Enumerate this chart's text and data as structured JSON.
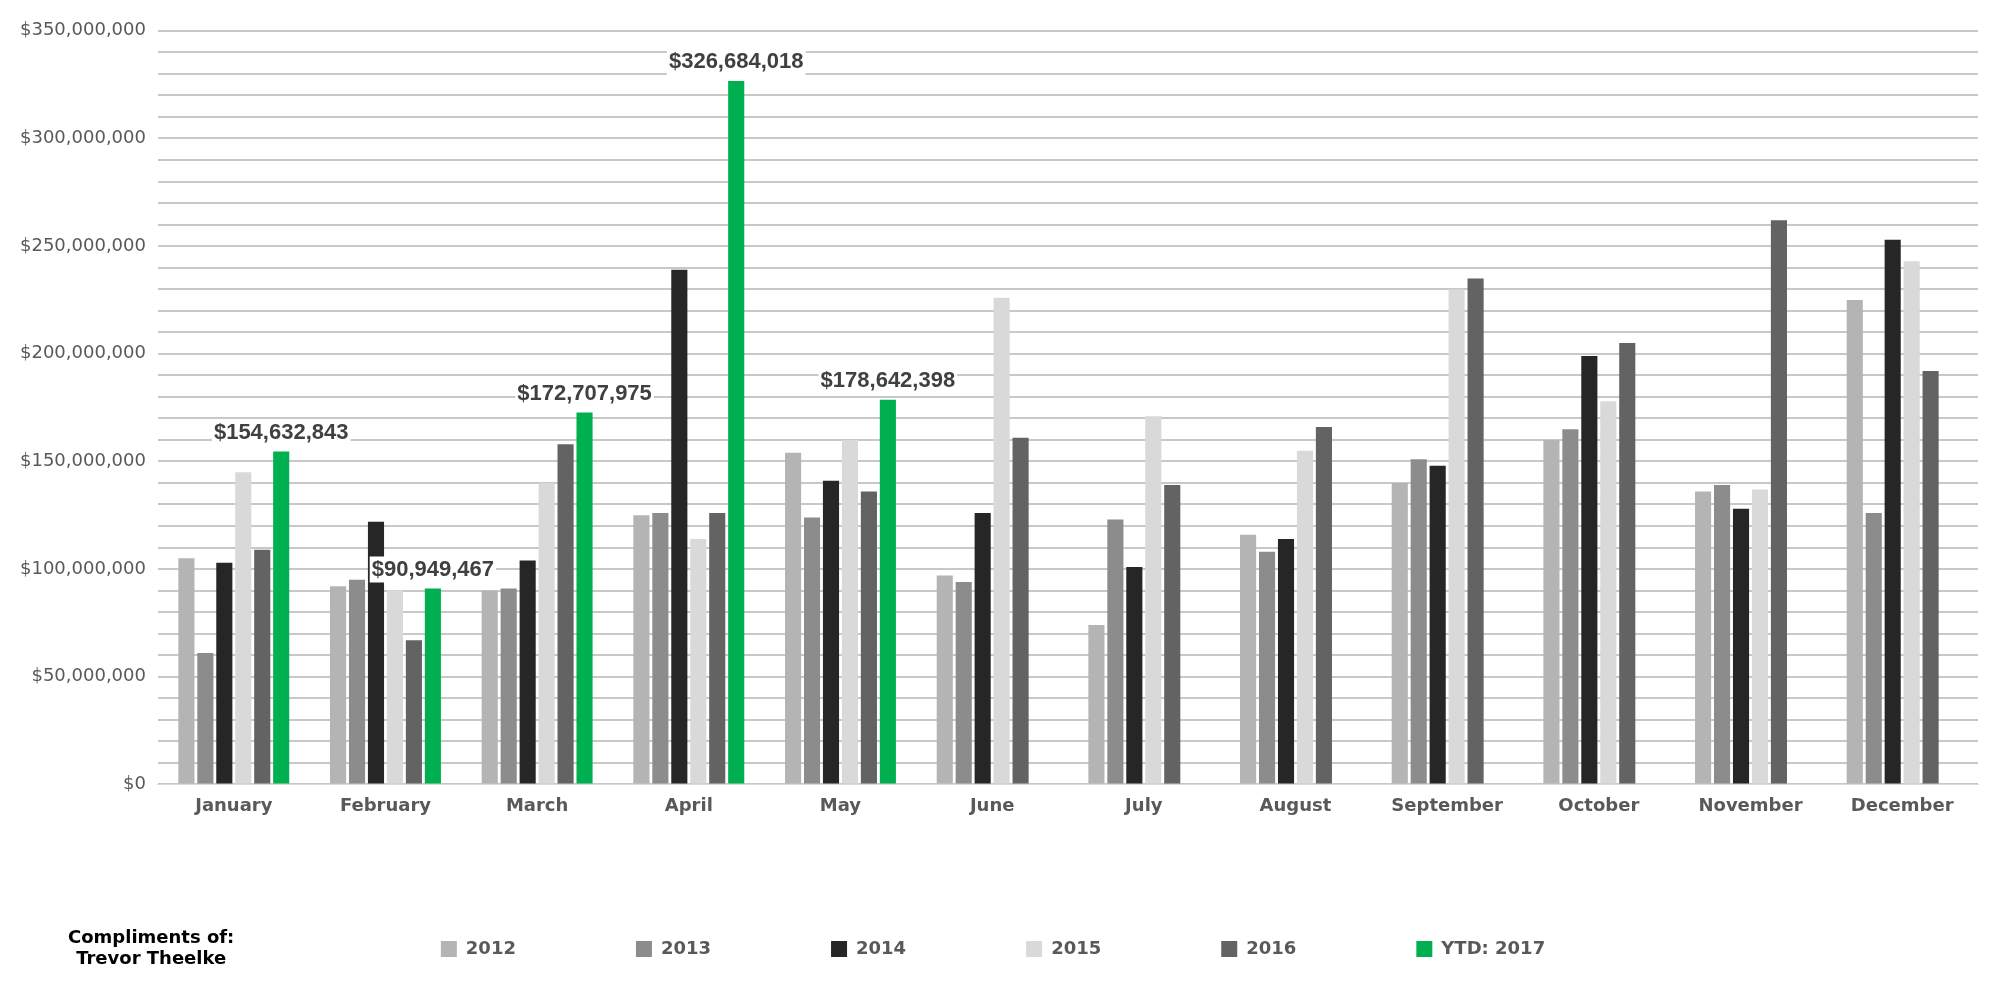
{
  "chart_data": {
    "type": "bar",
    "categories": [
      "January",
      "February",
      "March",
      "April",
      "May",
      "June",
      "July",
      "August",
      "September",
      "October",
      "November",
      "December"
    ],
    "series": [
      {
        "name": "2012",
        "color": "#b4b4b4",
        "values": [
          105000000,
          92000000,
          90000000,
          125000000,
          154000000,
          97000000,
          74000000,
          116000000,
          140000000,
          160000000,
          136000000,
          225000000
        ]
      },
      {
        "name": "2013",
        "color": "#8c8c8c",
        "values": [
          61000000,
          95000000,
          91000000,
          126000000,
          124000000,
          94000000,
          123000000,
          108000000,
          151000000,
          165000000,
          139000000,
          126000000
        ]
      },
      {
        "name": "2014",
        "color": "#262626",
        "values": [
          103000000,
          122000000,
          104000000,
          239000000,
          141000000,
          126000000,
          101000000,
          114000000,
          148000000,
          199000000,
          128000000,
          253000000
        ]
      },
      {
        "name": "2015",
        "color": "#d9d9d9",
        "values": [
          145000000,
          90000000,
          140000000,
          114000000,
          160000000,
          226000000,
          171000000,
          155000000,
          230000000,
          178000000,
          137000000,
          243000000
        ]
      },
      {
        "name": "2016",
        "color": "#636363",
        "values": [
          109000000,
          67000000,
          158000000,
          126000000,
          136000000,
          161000000,
          139000000,
          166000000,
          235000000,
          205000000,
          262000000,
          192000000
        ]
      },
      {
        "name": "YTD: 2017",
        "color": "#00b050",
        "values": [
          154632843,
          90949467,
          172707975,
          326684018,
          178642398,
          null,
          null,
          null,
          null,
          null,
          null,
          null
        ],
        "value_labels": [
          "$154,632,843",
          "$90,949,467",
          "$172,707,975",
          "$326,684,018",
          "$178,642,398",
          null,
          null,
          null,
          null,
          null,
          null,
          null
        ]
      }
    ],
    "ylim": [
      0,
      350000000
    ],
    "yticks": [
      {
        "value": 0,
        "label": "$0"
      },
      {
        "value": 10000000,
        "label": null
      },
      {
        "value": 20000000,
        "label": null
      },
      {
        "value": 30000000,
        "label": null
      },
      {
        "value": 40000000,
        "label": null
      },
      {
        "value": 50000000,
        "label": "$50,000,000"
      },
      {
        "value": 60000000,
        "label": null
      },
      {
        "value": 70000000,
        "label": null
      },
      {
        "value": 80000000,
        "label": null
      },
      {
        "value": 90000000,
        "label": null
      },
      {
        "value": 100000000,
        "label": "$100,000,000"
      },
      {
        "value": 110000000,
        "label": null
      },
      {
        "value": 120000000,
        "label": null
      },
      {
        "value": 130000000,
        "label": null
      },
      {
        "value": 140000000,
        "label": null
      },
      {
        "value": 150000000,
        "label": "$150,000,000"
      },
      {
        "value": 160000000,
        "label": null
      },
      {
        "value": 170000000,
        "label": null
      },
      {
        "value": 180000000,
        "label": null
      },
      {
        "value": 190000000,
        "label": null
      },
      {
        "value": 200000000,
        "label": "$200,000,000"
      },
      {
        "value": 210000000,
        "label": null
      },
      {
        "value": 220000000,
        "label": null
      },
      {
        "value": 230000000,
        "label": null
      },
      {
        "value": 240000000,
        "label": null
      },
      {
        "value": 250000000,
        "label": "$250,000,000"
      },
      {
        "value": 260000000,
        "label": null
      },
      {
        "value": 270000000,
        "label": null
      },
      {
        "value": 280000000,
        "label": null
      },
      {
        "value": 290000000,
        "label": null
      },
      {
        "value": 300000000,
        "label": "$300,000,000"
      },
      {
        "value": 310000000,
        "label": null
      },
      {
        "value": 320000000,
        "label": null
      },
      {
        "value": 330000000,
        "label": null
      },
      {
        "value": 340000000,
        "label": null
      },
      {
        "value": 350000000,
        "label": "$350,000,000"
      }
    ],
    "grid": "y",
    "legend": "bottom",
    "annotations": [
      "Compliments of:\nTrevor Theelke"
    ]
  }
}
